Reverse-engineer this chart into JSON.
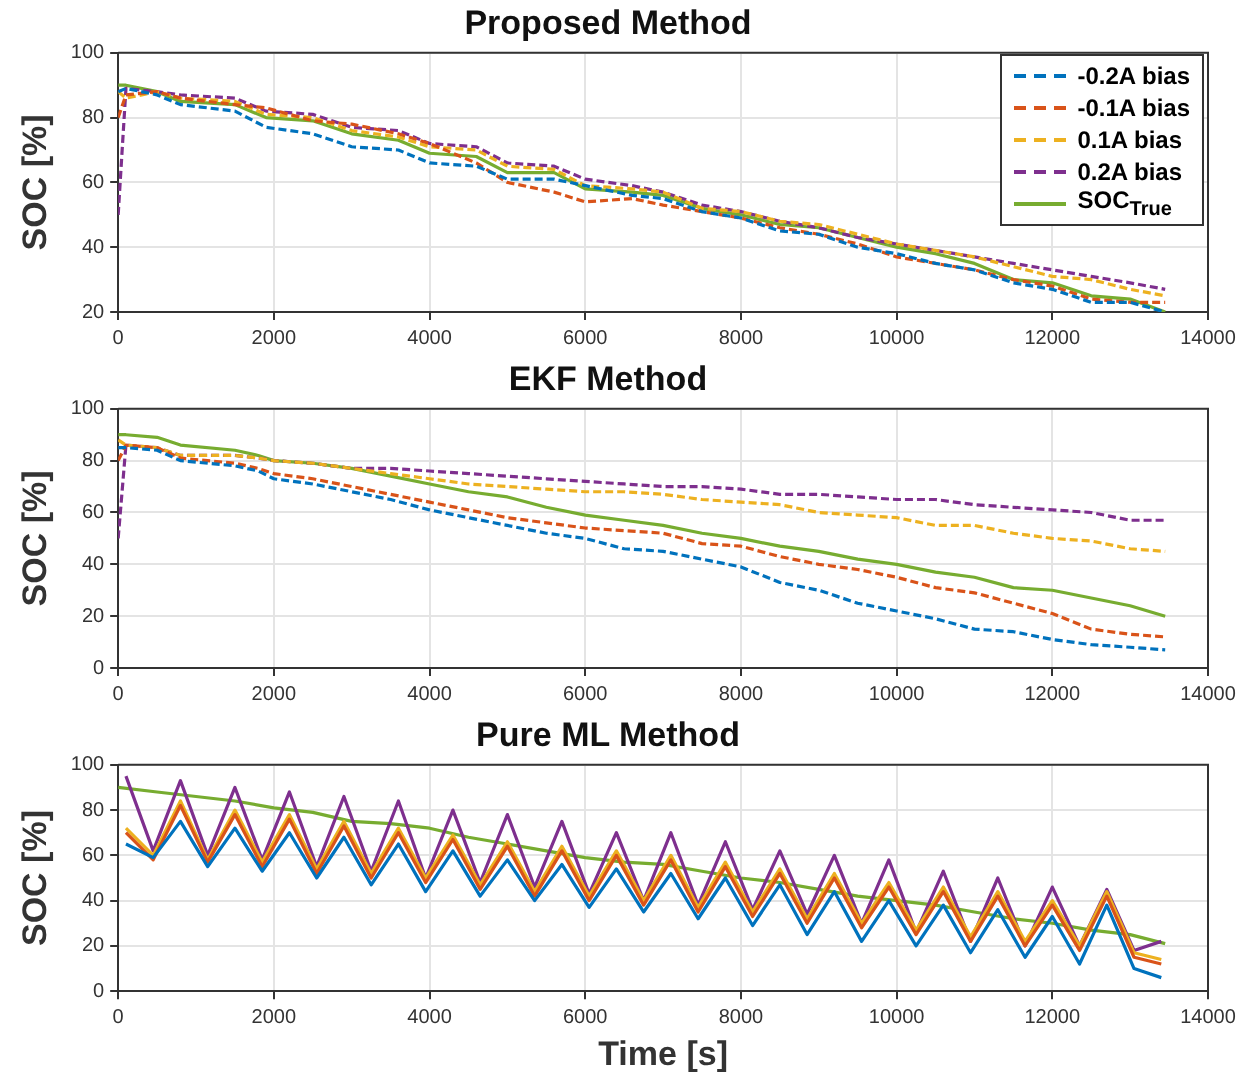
{
  "chart_data": [
    {
      "type": "line",
      "title": "Proposed Method",
      "ylabel": "SOC [%]",
      "xlim": [
        0,
        14000
      ],
      "xticks": [
        0,
        2000,
        4000,
        6000,
        8000,
        10000,
        12000,
        14000
      ],
      "ylim": [
        20,
        100
      ],
      "yticks": [
        20,
        40,
        60,
        80,
        100
      ],
      "grid": true,
      "legend": "top right",
      "marker": "none",
      "x": [
        0,
        100,
        500,
        800,
        1500,
        1900,
        2500,
        3000,
        3600,
        4000,
        4600,
        5000,
        5600,
        6000,
        6600,
        7000,
        7500,
        8000,
        8500,
        9000,
        9500,
        10000,
        10500,
        11000,
        11500,
        12000,
        12500,
        13000,
        13450
      ],
      "series": [
        {
          "name": "-0.2A bias",
          "color": "#0072bd",
          "line_style": "dashed",
          "values": [
            88,
            89,
            87,
            84,
            82,
            77,
            75,
            71,
            70,
            66,
            65,
            61,
            61,
            59,
            56,
            55,
            51,
            49,
            45,
            44,
            40,
            38,
            35,
            33,
            29,
            27,
            23,
            23,
            20
          ]
        },
        {
          "name": "-0.1A bias",
          "color": "#d95319",
          "line_style": "dashed",
          "values": [
            80,
            87,
            88,
            86,
            84,
            83,
            79,
            78,
            75,
            72,
            66,
            60,
            57,
            54,
            55,
            53,
            51,
            49,
            46,
            44,
            41,
            37,
            35,
            33,
            30,
            28,
            24,
            23,
            23
          ]
        },
        {
          "name": "0.1A bias",
          "color": "#edb120",
          "line_style": "dashed",
          "values": [
            88,
            86,
            88,
            86,
            85,
            81,
            80,
            76,
            74,
            71,
            70,
            65,
            64,
            59,
            58,
            57,
            52,
            51,
            48,
            47,
            44,
            41,
            39,
            37,
            34,
            31,
            30,
            27,
            25
          ]
        },
        {
          "name": "0.2A bias",
          "color": "#7e2f8e",
          "line_style": "dashed",
          "values": [
            50,
            89,
            88,
            87,
            86,
            82,
            81,
            77,
            76,
            72,
            71,
            66,
            65,
            61,
            59,
            57,
            53,
            51,
            48,
            46,
            43,
            41,
            39,
            37,
            35,
            33,
            31,
            29,
            27
          ]
        },
        {
          "name": "SOC$_{True}$",
          "color": "#77ac30",
          "line_style": "solid",
          "values": [
            90,
            90,
            88,
            85,
            84,
            80,
            79,
            75,
            73,
            69,
            68,
            63,
            63,
            58,
            57,
            56,
            52,
            50,
            47,
            46,
            43,
            40,
            38,
            35,
            30,
            29,
            25,
            24,
            20
          ]
        }
      ]
    },
    {
      "type": "line",
      "title": "EKF Method",
      "ylabel": "SOC [%]",
      "xlim": [
        0,
        14000
      ],
      "xticks": [
        0,
        2000,
        4000,
        6000,
        8000,
        10000,
        12000,
        14000
      ],
      "ylim": [
        0,
        100
      ],
      "yticks": [
        0,
        20,
        40,
        60,
        80,
        100
      ],
      "grid": true,
      "marker": "none",
      "x": [
        0,
        100,
        500,
        800,
        1500,
        1800,
        2000,
        2500,
        3000,
        3500,
        4000,
        4500,
        5000,
        5500,
        6000,
        6500,
        7000,
        7500,
        8000,
        8500,
        9000,
        9500,
        10000,
        10500,
        11000,
        11500,
        12000,
        12500,
        13000,
        13450
      ],
      "series": [
        {
          "color": "#0072bd",
          "line_style": "dashed",
          "values": [
            85,
            85,
            84,
            80,
            78,
            76,
            73,
            71,
            68,
            65,
            61,
            58,
            55,
            52,
            50,
            46,
            45,
            42,
            39,
            33,
            30,
            25,
            22,
            19,
            15,
            14,
            11,
            9,
            8,
            7
          ]
        },
        {
          "color": "#d95319",
          "line_style": "dashed",
          "values": [
            80,
            86,
            85,
            81,
            79,
            77,
            75,
            73,
            70,
            67,
            64,
            61,
            58,
            56,
            54,
            53,
            52,
            48,
            47,
            43,
            40,
            38,
            35,
            31,
            29,
            25,
            21,
            15,
            13,
            12
          ]
        },
        {
          "color": "#edb120",
          "line_style": "dashed",
          "values": [
            88,
            86,
            85,
            82,
            82,
            81,
            80,
            79,
            77,
            75,
            73,
            71,
            70,
            69,
            68,
            68,
            67,
            65,
            64,
            63,
            60,
            59,
            58,
            55,
            55,
            52,
            50,
            49,
            46,
            45
          ]
        },
        {
          "color": "#7e2f8e",
          "line_style": "dashed",
          "values": [
            50,
            86,
            85,
            82,
            82,
            81,
            80,
            79,
            77,
            77,
            76,
            75,
            74,
            73,
            72,
            71,
            70,
            70,
            69,
            67,
            67,
            66,
            65,
            65,
            63,
            62,
            61,
            60,
            57,
            57
          ]
        },
        {
          "color": "#77ac30",
          "line_style": "solid",
          "values": [
            90,
            90,
            89,
            86,
            84,
            82,
            80,
            79,
            77,
            74,
            71,
            68,
            66,
            62,
            59,
            57,
            55,
            52,
            50,
            47,
            45,
            42,
            40,
            37,
            35,
            31,
            30,
            27,
            24,
            20
          ]
        }
      ]
    },
    {
      "type": "line",
      "title": "Pure ML Method",
      "xlabel": "Time [s]",
      "ylabel": "SOC [%]",
      "xlim": [
        0,
        14000
      ],
      "xticks": [
        0,
        2000,
        4000,
        6000,
        8000,
        10000,
        12000,
        14000
      ],
      "ylim": [
        0,
        100
      ],
      "yticks": [
        0,
        20,
        40,
        60,
        80,
        100
      ],
      "grid": true,
      "marker": "none",
      "line_style": "solid",
      "x": [
        100,
        450,
        800,
        1150,
        1500,
        1850,
        2200,
        2550,
        2900,
        3250,
        3600,
        3950,
        4300,
        4650,
        5000,
        5350,
        5700,
        6050,
        6400,
        6750,
        7100,
        7450,
        7800,
        8150,
        8500,
        8850,
        9200,
        9550,
        9900,
        10250,
        10600,
        10950,
        11300,
        11650,
        12000,
        12350,
        12700,
        13050,
        13400
      ],
      "series": [
        {
          "color": "#0072bd",
          "values": [
            65,
            59,
            75,
            55,
            72,
            53,
            70,
            50,
            68,
            47,
            65,
            44,
            62,
            42,
            58,
            40,
            56,
            37,
            54,
            35,
            52,
            32,
            50,
            29,
            47,
            25,
            44,
            22,
            40,
            20,
            38,
            17,
            36,
            15,
            33,
            12,
            38,
            10,
            6
          ]
        },
        {
          "color": "#d95319",
          "values": [
            70,
            58,
            82,
            57,
            78,
            55,
            76,
            52,
            73,
            50,
            70,
            48,
            67,
            45,
            64,
            42,
            62,
            40,
            60,
            38,
            58,
            35,
            55,
            33,
            52,
            30,
            50,
            28,
            46,
            25,
            44,
            22,
            42,
            20,
            38,
            18,
            42,
            15,
            12
          ]
        },
        {
          "color": "#edb120",
          "values": [
            72,
            60,
            84,
            58,
            80,
            57,
            78,
            54,
            75,
            52,
            72,
            50,
            69,
            47,
            66,
            44,
            64,
            42,
            62,
            40,
            60,
            37,
            57,
            35,
            54,
            32,
            52,
            30,
            48,
            27,
            46,
            24,
            44,
            22,
            40,
            20,
            44,
            17,
            14
          ]
        },
        {
          "color": "#7e2f8e",
          "values": [
            95,
            62,
            93,
            60,
            90,
            58,
            88,
            55,
            86,
            53,
            84,
            50,
            80,
            48,
            78,
            46,
            75,
            43,
            70,
            40,
            70,
            38,
            66,
            36,
            62,
            34,
            60,
            30,
            58,
            26,
            53,
            22,
            50,
            20,
            46,
            20,
            45,
            18,
            22
          ]
        },
        {
          "color": "#77ac30",
          "x": [
            0,
            500,
            1000,
            1500,
            2000,
            2500,
            3000,
            3500,
            4000,
            4500,
            5000,
            5500,
            6000,
            6500,
            7000,
            7500,
            8000,
            8500,
            9000,
            9500,
            10000,
            10500,
            11000,
            11500,
            12000,
            12500,
            13000,
            13450
          ],
          "values": [
            90,
            88,
            86,
            84,
            81,
            79,
            75,
            74,
            72,
            68,
            65,
            62,
            59,
            57,
            56,
            53,
            50,
            48,
            45,
            42,
            40,
            38,
            35,
            32,
            30,
            27,
            25,
            21
          ]
        }
      ]
    }
  ]
}
